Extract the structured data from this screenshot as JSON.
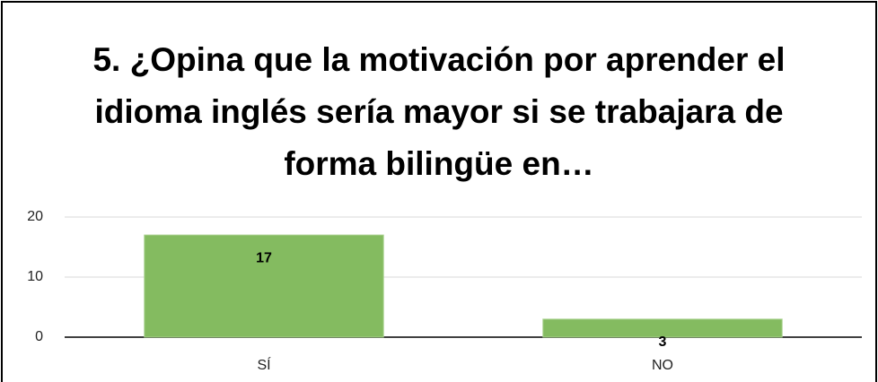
{
  "chart_data": {
    "type": "bar",
    "title": "5. ¿Opina que la motivación por aprender el idioma inglés sería mayor si se trabajara de forma bilingüe en…",
    "categories": [
      "SÍ",
      "NO"
    ],
    "values": [
      17,
      3
    ],
    "color": "#84bb60",
    "ylim": [
      0,
      20
    ],
    "yticks": [
      0,
      10,
      20
    ],
    "grid": true,
    "data_labels": true
  }
}
